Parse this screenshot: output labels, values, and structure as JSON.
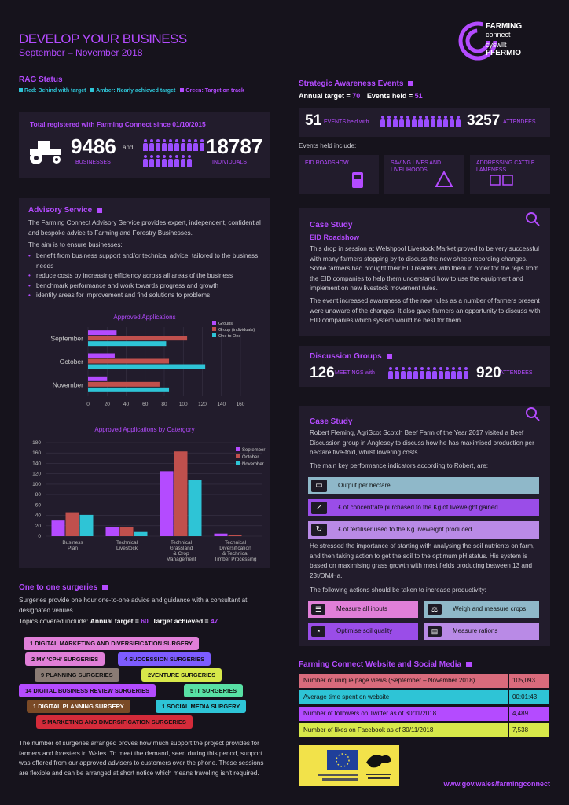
{
  "header": {
    "title": "DEVELOP YOUR BUSINESS",
    "subtitle": "September – November 2018",
    "logo_line1": "FARMING",
    "logo_line2": "connect",
    "logo_line3": "cyswllt",
    "logo_line4": "FFERMIO"
  },
  "rag": {
    "title": "RAG Status",
    "red": "Red: Behind with target",
    "amber": "Amber: Nearly achieved target",
    "green": "Green: Target on track",
    "colors": {
      "red": "#2ec4d6",
      "amber": "#2ec4d6",
      "green": "#b44bff"
    }
  },
  "registered": {
    "title": "Total registered with Farming Connect since 01/10/2015",
    "businesses": "9486",
    "businesses_label": "BUSINESSES",
    "and": "and",
    "individuals": "18787",
    "individuals_label": "INDIVIDUALS"
  },
  "advisory": {
    "title": "Advisory Service",
    "intro": "The Farming Connect Advisory Service provides expert, independent, confidential and bespoke advice to Farming and Forestry Businesses.",
    "aim": "The aim is to ensure businesses:",
    "bullets": [
      "benefit from business support and/or technical advice, tailored to the business needs",
      "reduce costs by increasing efficiency across all areas of the business",
      "benchmark performance and work towards progress and growth",
      "identify areas for improvement and find solutions to problems"
    ]
  },
  "chart_data": [
    {
      "type": "bar",
      "orientation": "horizontal",
      "title": "Approved Applications",
      "categories": [
        "September",
        "October",
        "November"
      ],
      "series": [
        {
          "name": "Groups",
          "values": [
            30,
            28,
            20
          ],
          "color": "#b44bff"
        },
        {
          "name": "Group (individuals)",
          "values": [
            104,
            85,
            75
          ],
          "color": "#c0504d"
        },
        {
          "name": "One to One",
          "values": [
            82,
            123,
            85
          ],
          "color": "#2ec4d6"
        }
      ],
      "xlim": [
        0,
        160
      ],
      "xticks": [
        "0",
        "20",
        "40",
        "60",
        "80",
        "100",
        "120",
        "140",
        "160"
      ],
      "legend": "top-right"
    },
    {
      "type": "bar",
      "title": "Approved Applications by Catergory",
      "categories": [
        "Business Plan",
        "Technical Livestock",
        "Technical Grassland & Crop Management",
        "Technical Diversification & Technical Timber Processing"
      ],
      "series": [
        {
          "name": "September",
          "values": [
            30,
            17,
            125,
            5
          ],
          "color": "#b44bff"
        },
        {
          "name": "October",
          "values": [
            46,
            17,
            163,
            2
          ],
          "color": "#c0504d"
        },
        {
          "name": "November",
          "values": [
            41,
            8,
            108,
            0
          ],
          "color": "#2ec4d6"
        }
      ],
      "ylim": [
        0,
        180
      ],
      "yticks": [
        "0",
        "20",
        "40",
        "60",
        "80",
        "100",
        "120",
        "140",
        "160",
        "180"
      ],
      "legend": "top-right"
    }
  ],
  "surgeries": {
    "title": "One to one surgeries",
    "intro": "Surgeries provide one hour one-to-one advice and guidance with a consultant at designated venues.",
    "topics_prefix": "Topics covered include:",
    "annual_target_label": "Annual target =",
    "annual_target": "60",
    "achieved_label": "Target achieved =",
    "achieved": "47",
    "pills": [
      {
        "label": "1 DIGITAL MARKETING AND DIVERSIFICATION SURGERY",
        "color": "#e07fd8"
      },
      {
        "label": "2 MY 'CPH' SURGERIES",
        "color": "#e07fd8"
      },
      {
        "label": "4 SUCCESSION SURGERIES",
        "color": "#7d5cff"
      },
      {
        "label": "9 PLANNING SURGERIES",
        "color": "#8a7b74"
      },
      {
        "label": "2VENTURE SURGERIES",
        "color": "#d7e84a"
      },
      {
        "label": "14 DIGITAL BUSINESS REVIEW SURGERIES",
        "color": "#b44bff"
      },
      {
        "label": "5 IT SURGERIES",
        "color": "#58e0a4"
      },
      {
        "label": "1 DIGITAL PLANNING SURGERY",
        "color": "#7a4a26"
      },
      {
        "label": "1 SOCIAL MEDIA SURGERY",
        "color": "#2ec4d6"
      },
      {
        "label": "5 MARKETING AND DIVERSIFICATION SURGERIES",
        "color": "#d42b3a"
      }
    ],
    "closing": "The number of surgeries arranged proves how much support the project provides for farmers and foresters in Wales. To meet the demand, seen during this period, support was offered from our approved advisers to customers over the phone. These sessions are flexible and can be arranged at short notice which means traveling isn't required."
  },
  "strategic": {
    "title": "Strategic Awareness Events",
    "target_label": "Annual target =",
    "target": "70",
    "held_label": "Events held =",
    "held": "51",
    "events": "51",
    "events_label": "EVENTS held with",
    "attendees": "3257",
    "attendees_label": "ATTENDEES",
    "held_include": "Events held include:",
    "boxes": [
      "EID ROADSHOW",
      "SAVING LIVES AND LIVELIHOODS",
      "ADDRESSING CATTLE LAMENESS"
    ]
  },
  "case1": {
    "title": "Case Study",
    "subtitle": "EID Roadshow",
    "p1": "This drop in session at Welshpool Livestock Market proved to be very successful with many farmers stopping by to discuss the new sheep recording changes. Some farmers had brought their EID readers with them in order for the reps from the EID companies to help them understand how to use the equipment and implement on new livestock movement rules.",
    "p2": "The event increased awareness of the new rules as a number of farmers present were unaware of the changes. It also gave farmers an opportunity to discuss with EID companies which system would be best for them."
  },
  "discussion": {
    "title": "Discussion Groups",
    "meetings": "126",
    "meetings_label": "MEETINGS with",
    "attendees": "920",
    "attendees_label": "ATTENDEES"
  },
  "case2": {
    "title": "Case Study",
    "p1": "Robert Fleming, AgriScot Scotch Beef Farm of the Year 2017 visited a Beef Discussion group in Anglesey to discuss how he has maximised production per hectare five-fold, whilst lowering costs.",
    "kpi_intro": "The main key performance indicators according to Robert, are:",
    "kpis": [
      {
        "label": "Output per hectare",
        "color": "#8fb8c9"
      },
      {
        "label": "£ of concentrate purchased to the Kg of liveweight gained",
        "color": "#9a4de8"
      },
      {
        "label": "£ of fertiliser used to the Kg liveweight produced",
        "color": "#b98ae6"
      }
    ],
    "p2": "He stressed the importance of starting with analysing the soil nutrients on farm, and then taking action to get the soil to the optimum pH status. His system is based on maximising grass growth with most fields producing between 13 and 23t/DM/Ha.",
    "actions_intro": "The following actions should be taken to increase productivity:",
    "actions": [
      {
        "label": "Measure all inputs",
        "color": "#e07fd8"
      },
      {
        "label": "Weigh and measure crops",
        "color": "#8fb8c9"
      },
      {
        "label": "Optimise soil quality",
        "color": "#9a4de8"
      },
      {
        "label": "Measure rations",
        "color": "#b98ae6"
      }
    ]
  },
  "web": {
    "title": "Farming Connect Website and Social Media",
    "rows": [
      {
        "label": "Number of unique page views (September – November 2018)",
        "value": "105,093",
        "color": "#d96b7c"
      },
      {
        "label": "Average time spent on website",
        "value": "00:01:43",
        "color": "#2ec4d6"
      },
      {
        "label": "Number of followers on Twitter as of 30/11/2018",
        "value": "4,489",
        "color": "#b44bff"
      },
      {
        "label": "Number of likes on Facebook as of 30/11/2018",
        "value": "7,538",
        "color": "#d7e84a"
      }
    ]
  },
  "footer": {
    "url": "www.gov.wales/farmingconnect"
  }
}
